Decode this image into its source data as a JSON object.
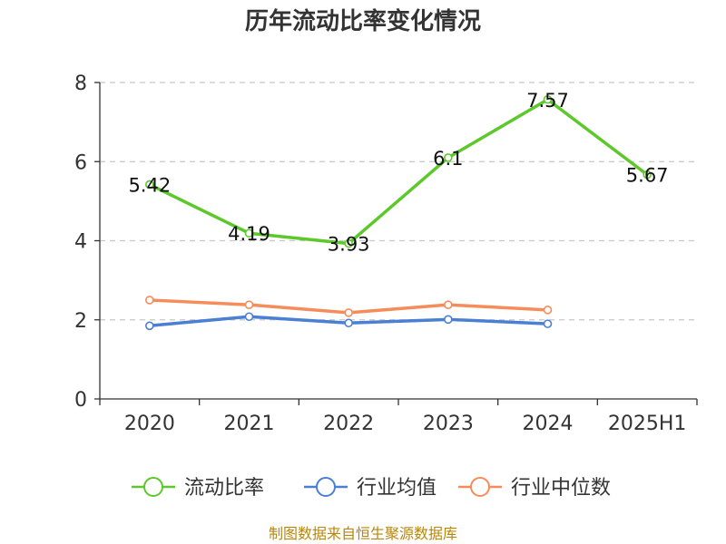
{
  "chart_data": {
    "type": "line",
    "title": "历年流动比率变化情况",
    "categories": [
      "2020",
      "2021",
      "2022",
      "2023",
      "2024",
      "2025H1"
    ],
    "ylim": [
      0,
      8
    ],
    "yticks": [
      0,
      2,
      4,
      6,
      8
    ],
    "grid": true,
    "legend_position": "bottom",
    "series": [
      {
        "name": "流动比率",
        "color": "#5cc82a",
        "values": [
          5.42,
          4.19,
          3.93,
          6.1,
          7.57,
          5.67
        ],
        "labels": [
          "5.42",
          "4.19",
          "3.93",
          "6.1",
          "7.57",
          "5.67"
        ]
      },
      {
        "name": "行业均值",
        "color": "#4a7fd4",
        "values": [
          1.85,
          2.08,
          1.92,
          2.01,
          1.9,
          null
        ]
      },
      {
        "name": "行业中位数",
        "color": "#f58c5a",
        "values": [
          2.5,
          2.38,
          2.18,
          2.38,
          2.25,
          null
        ]
      }
    ],
    "source": "制图数据来自恒生聚源数据库"
  }
}
